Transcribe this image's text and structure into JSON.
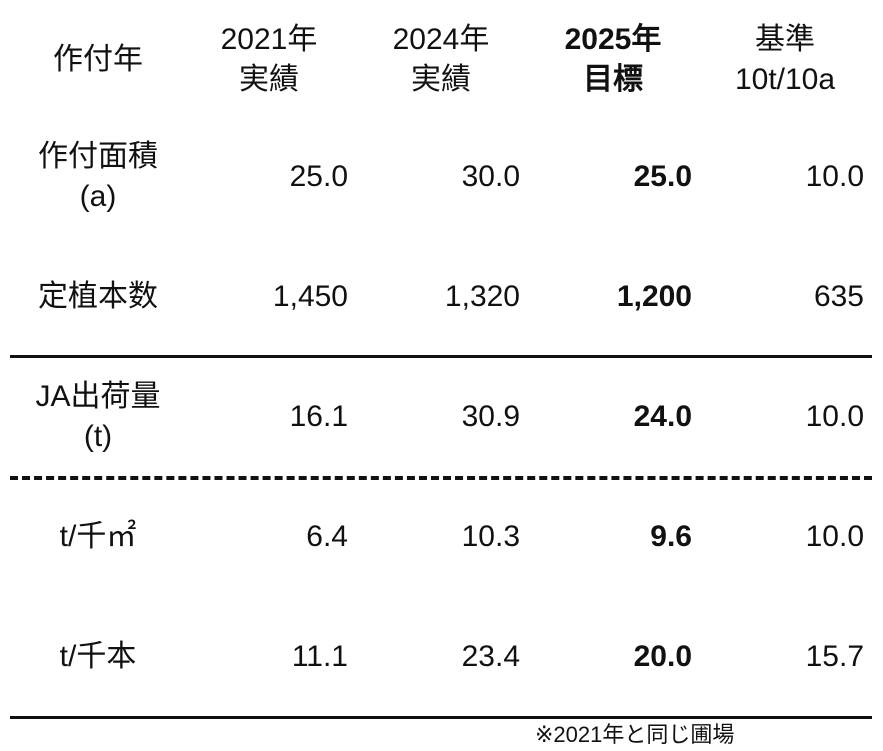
{
  "table": {
    "header": [
      [
        "作付年"
      ],
      [
        "2021年",
        "実績"
      ],
      [
        "2024年",
        "実績"
      ],
      [
        "2025年",
        "目標"
      ],
      [
        "基準",
        "10t/10a"
      ]
    ],
    "rows": [
      {
        "label": [
          "作付面積",
          "(a)"
        ],
        "cells": [
          "25.0",
          "30.0",
          "25.0",
          "10.0"
        ]
      },
      {
        "label": [
          "定植本数"
        ],
        "cells": [
          "1,450",
          "1,320",
          "1,200",
          "635"
        ]
      },
      {
        "label": [
          "JA出荷量",
          "(t)"
        ],
        "cells": [
          "16.1",
          "30.9",
          "24.0",
          "10.0"
        ]
      },
      {
        "label": [
          "t/千㎡"
        ],
        "cells": [
          "6.4",
          "10.3",
          "9.6",
          "10.0"
        ]
      },
      {
        "label": [
          "t/千本"
        ],
        "cells": [
          "11.1",
          "23.4",
          "20.0",
          "15.7"
        ]
      }
    ],
    "footnote": "※2021年と同じ圃場"
  }
}
